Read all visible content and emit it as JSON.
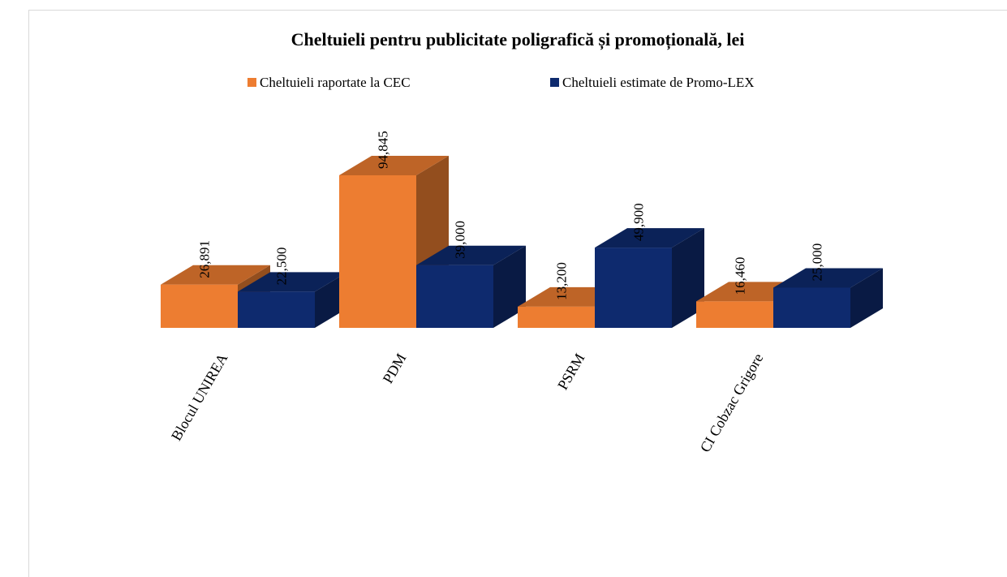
{
  "chart_data": {
    "type": "bar3d",
    "title": "Cheltuieli pentru publicitate poligrafică și promoțională, lei",
    "categories": [
      "Blocul UNIREA",
      "PDM",
      "PSRM",
      "CI Cobzac Grigore"
    ],
    "series": [
      {
        "name": "Cheltuieli raportate la CEC",
        "color": "#ED7D31",
        "values": [
          26891,
          94845,
          13200,
          16460
        ],
        "value_labels": [
          "26,891",
          "94,845",
          "13,200",
          "16,460"
        ]
      },
      {
        "name": "Cheltuieli estimate de Promo-LEX",
        "color": "#0E2A6E",
        "values": [
          22500,
          39000,
          49900,
          25000
        ],
        "value_labels": [
          "22,500",
          "39,000",
          "49,900",
          "25,000"
        ]
      }
    ]
  }
}
